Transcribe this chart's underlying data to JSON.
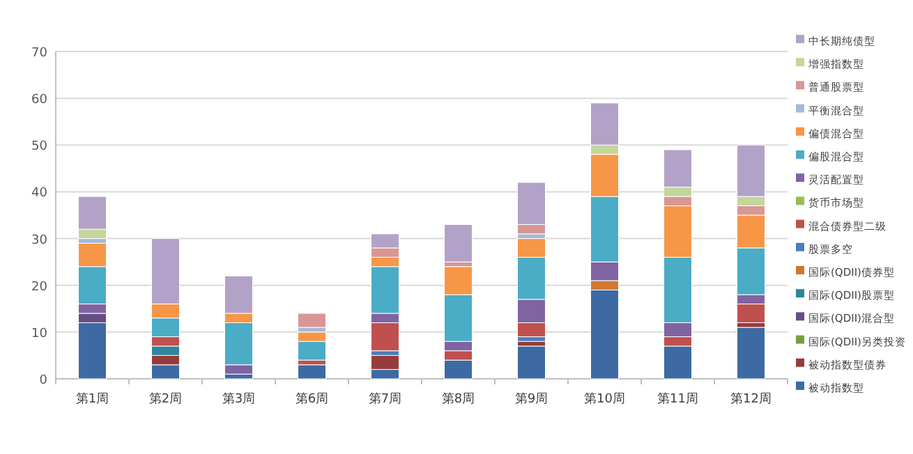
{
  "chart_data": {
    "type": "bar",
    "stacked": true,
    "categories": [
      "第1周",
      "第2周",
      "第3周",
      "第6周",
      "第7周",
      "第8周",
      "第9周",
      "第10周",
      "第11周",
      "第12周"
    ],
    "ylim": [
      0,
      70
    ],
    "yticks": [
      0,
      10,
      20,
      30,
      40,
      50,
      60,
      70
    ],
    "grid": "y",
    "legend": "right",
    "series": [
      {
        "name": "被动指数型",
        "color": "#3d6aa3",
        "values": [
          12,
          3,
          1,
          3,
          2,
          4,
          7,
          19,
          7,
          11
        ]
      },
      {
        "name": "被动指数型债券",
        "color": "#963c3a",
        "values": [
          null,
          2,
          null,
          null,
          3,
          null,
          1,
          null,
          null,
          1
        ]
      },
      {
        "name": "国际(QDII)另类投资",
        "color": "#7e9d3f",
        "values": [
          null,
          null,
          null,
          null,
          null,
          null,
          null,
          null,
          null,
          null
        ]
      },
      {
        "name": "国际(QDII)混合型",
        "color": "#664e86",
        "values": [
          2,
          null,
          null,
          null,
          null,
          null,
          null,
          null,
          null,
          null
        ]
      },
      {
        "name": "国际(QDII)股票型",
        "color": "#31859c",
        "values": [
          null,
          2,
          null,
          null,
          null,
          null,
          null,
          null,
          null,
          null
        ]
      },
      {
        "name": "国际(QDII)债券型",
        "color": "#d07830",
        "values": [
          null,
          null,
          null,
          null,
          null,
          null,
          null,
          2,
          null,
          null
        ]
      },
      {
        "name": "股票多空",
        "color": "#4a7ebb",
        "values": [
          null,
          null,
          null,
          null,
          1,
          null,
          1,
          null,
          null,
          null
        ]
      },
      {
        "name": "混合债券型二级",
        "color": "#c0504d",
        "values": [
          null,
          2,
          null,
          1,
          6,
          2,
          3,
          null,
          2,
          4
        ]
      },
      {
        "name": "货币市场型",
        "color": "#9bbb59",
        "values": [
          null,
          null,
          null,
          null,
          null,
          null,
          null,
          null,
          null,
          null
        ]
      },
      {
        "name": "灵活配置型",
        "color": "#8064a2",
        "values": [
          2,
          null,
          2,
          null,
          2,
          2,
          5,
          4,
          3,
          2
        ]
      },
      {
        "name": "偏股混合型",
        "color": "#4bacc6",
        "values": [
          8,
          4,
          9,
          4,
          10,
          10,
          9,
          14,
          14,
          10
        ]
      },
      {
        "name": "偏债混合型",
        "color": "#f79646",
        "values": [
          5,
          3,
          2,
          2,
          2,
          6,
          4,
          9,
          11,
          7
        ]
      },
      {
        "name": "平衡混合型",
        "color": "#a5b9d9",
        "values": [
          1,
          null,
          null,
          1,
          null,
          null,
          1,
          null,
          null,
          null
        ]
      },
      {
        "name": "普通股票型",
        "color": "#d99694",
        "values": [
          null,
          null,
          null,
          3,
          2,
          1,
          2,
          null,
          2,
          2
        ]
      },
      {
        "name": "增强指数型",
        "color": "#c3d69b",
        "values": [
          2,
          null,
          null,
          null,
          null,
          null,
          null,
          2,
          2,
          2
        ]
      },
      {
        "name": "中长期纯债型",
        "color": "#b3a2c7",
        "values": [
          7,
          14,
          8,
          null,
          3,
          8,
          9,
          9,
          8,
          11
        ]
      }
    ]
  }
}
